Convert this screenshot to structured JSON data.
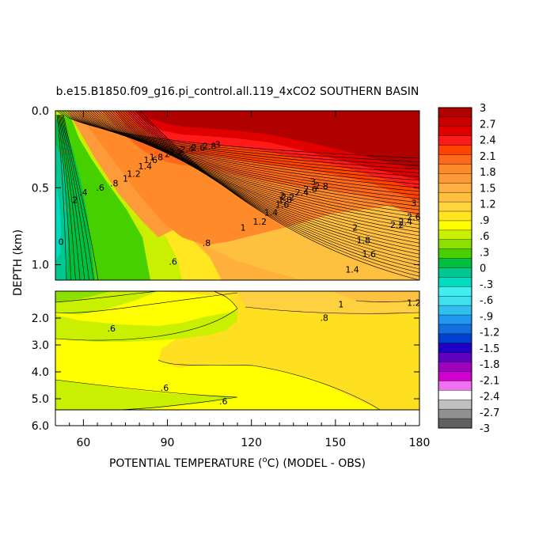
{
  "chart_data": {
    "type": "contour",
    "title": "b.e15.B1850.f09_g16.pi_control.all.119_4xCO2 SOUTHERN BASIN",
    "xlabel_main": "POTENTIAL TEMPERATURE (",
    "xlabel_sup": "o",
    "xlabel_end": "C) (MODEL - OBS)",
    "ylabel": "DEPTH (km)",
    "x_ticks": [
      "60",
      "90",
      "120",
      "150",
      "180"
    ],
    "x_tick_values": [
      60,
      90,
      120,
      150,
      180
    ],
    "xlim": [
      50,
      180
    ],
    "top_panel": {
      "ylim": [
        0.0,
        1.1
      ],
      "y_ticks": [
        "0.0",
        "0.5",
        "1.0"
      ],
      "y_tick_values": [
        0.0,
        0.5,
        1.0
      ]
    },
    "bottom_panel": {
      "ylim": [
        1.0,
        6.0
      ],
      "y_ticks": [
        "2.0",
        "3.0",
        "4.0",
        "5.0",
        "6.0"
      ],
      "y_tick_values": [
        2.0,
        3.0,
        4.0,
        5.0,
        6.0
      ],
      "data_bottom_km": 5.4
    },
    "colorbar": {
      "labels": [
        "3",
        "2.7",
        "2.4",
        "2.1",
        "1.8",
        "1.5",
        "1.2",
        ".9",
        ".6",
        ".3",
        "0",
        "-.3",
        "-.6",
        "-.9",
        "-1.2",
        "-1.5",
        "-1.8",
        "-2.1",
        "-2.4",
        "-2.7",
        "-3"
      ],
      "colors": [
        "#b00000",
        "#cc0000",
        "#e00000",
        "#ff1a1a",
        "#ff4400",
        "#ff6a1a",
        "#ff8a2a",
        "#ff9a3a",
        "#ffb040",
        "#ffc040",
        "#ffd440",
        "#ffe620",
        "#ffff00",
        "#c8f000",
        "#8ce000",
        "#46d000",
        "#00c040",
        "#00c890",
        "#00dcc0",
        "#40f0f0",
        "#40e0f0",
        "#30c0f0",
        "#2098f0",
        "#1070e0",
        "#0040d0",
        "#2000c8",
        "#6000c0",
        "#a000c0",
        "#d000d0",
        "#f070f0",
        "#ffffff",
        "#c0c0c0",
        "#909090",
        "#606060"
      ]
    },
    "contour_labels": [
      {
        "text": "0",
        "x": 52,
        "y": 0.87
      },
      {
        "text": "2",
        "x": 57,
        "y": 0.6
      },
      {
        "text": ".4",
        "x": 60,
        "y": 0.55
      },
      {
        "text": ".6",
        "x": 66,
        "y": 0.52
      },
      {
        "text": ".8",
        "x": 71,
        "y": 0.49
      },
      {
        "text": "1",
        "x": 75,
        "y": 0.46
      },
      {
        "text": "1.2",
        "x": 78,
        "y": 0.43
      },
      {
        "text": "1.4",
        "x": 82,
        "y": 0.38
      },
      {
        "text": "1.6",
        "x": 84,
        "y": 0.34
      },
      {
        "text": "1.8",
        "x": 86,
        "y": 0.32
      },
      {
        "text": "2",
        "x": 90,
        "y": 0.3
      },
      {
        "text": "2.2",
        "x": 93,
        "y": 0.29
      },
      {
        "text": "2.4",
        "x": 97,
        "y": 0.27
      },
      {
        "text": "2.6",
        "x": 101,
        "y": 0.26
      },
      {
        "text": "2.8",
        "x": 105,
        "y": 0.25
      },
      {
        "text": "3",
        "x": 108,
        "y": 0.24
      },
      {
        "text": ".6",
        "x": 92,
        "y": 1.0
      },
      {
        "text": ".8",
        "x": 104,
        "y": 0.88
      },
      {
        "text": "1",
        "x": 117,
        "y": 0.78
      },
      {
        "text": "1.2",
        "x": 123,
        "y": 0.74
      },
      {
        "text": "1.4",
        "x": 127,
        "y": 0.68
      },
      {
        "text": "1.6",
        "x": 131,
        "y": 0.63
      },
      {
        "text": "1.8",
        "x": 132,
        "y": 0.6
      },
      {
        "text": "2",
        "x": 131,
        "y": 0.57
      },
      {
        "text": "2.2",
        "x": 133,
        "y": 0.58
      },
      {
        "text": "2.4",
        "x": 138,
        "y": 0.55
      },
      {
        "text": "2.6",
        "x": 141,
        "y": 0.53
      },
      {
        "text": "2.8",
        "x": 145,
        "y": 0.51
      },
      {
        "text": "3",
        "x": 142,
        "y": 0.48
      },
      {
        "text": "2",
        "x": 157,
        "y": 0.78
      },
      {
        "text": "1.8",
        "x": 160,
        "y": 0.86
      },
      {
        "text": "1.6",
        "x": 162,
        "y": 0.95
      },
      {
        "text": "1.4",
        "x": 156,
        "y": 1.05
      },
      {
        "text": "2.2",
        "x": 172,
        "y": 0.76
      },
      {
        "text": "2.4",
        "x": 175,
        "y": 0.74
      },
      {
        "text": "2.6",
        "x": 178,
        "y": 0.71
      },
      {
        "text": "3",
        "x": 178,
        "y": 0.62
      },
      {
        "text": "1",
        "x": 152,
        "y": 1.6
      },
      {
        "text": "1.2",
        "x": 178,
        "y": 1.55
      },
      {
        "text": ".8",
        "x": 146,
        "y": 2.1
      },
      {
        "text": ".6",
        "x": 70,
        "y": 2.5
      },
      {
        "text": ".6",
        "x": 89,
        "y": 4.7
      },
      {
        "text": ".6",
        "x": 110,
        "y": 5.2
      }
    ]
  }
}
